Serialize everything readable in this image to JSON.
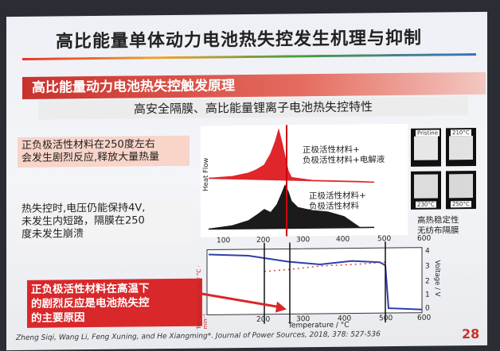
{
  "slide": {
    "title": "高比能量单体动力电池热失控发生机理与抑制",
    "banner": "高比能量动力电池热失控触发原理",
    "subtitle": "高安全隔膜、高比能量锂离子电池热失控特性",
    "notes": [
      {
        "lines": [
          "正负极活性材料在250度左右",
          "会发生剧烈反应,释放大量热量"
        ]
      },
      {
        "lines": [
          "热失控时,电压仍能保持4V,",
          "未发生内短路，隔膜在250",
          "度未发生崩溃"
        ]
      },
      {
        "lines": [
          "正负极活性材料在高温下",
          "的剧烈反应是电池热失控",
          "的主要原因"
        ]
      }
    ],
    "footer": "Zheng Siqi, Wang Li, Feng Xuning, and He Xiangming*. Journal of Power Sources, 2018, 378: 527-536",
    "page_number": "28"
  },
  "top_plot": {
    "ylabel": "Heat Flow",
    "legend_red": [
      "正极活性材料+",
      "负极活性材料+电解液"
    ],
    "legend_black": [
      "正极活性材料+",
      "负极活性材料"
    ],
    "colors": {
      "red": "#e0262a",
      "black": "#1b1b1b"
    }
  },
  "separator": {
    "labels": [
      "Pristine",
      "210°C",
      "230°C",
      "250°C"
    ],
    "caption": [
      "高热稳定性",
      "无纺布隔膜"
    ]
  },
  "bottom_plot": {
    "x_ticks": [
      "100",
      "200",
      "300",
      "400",
      "500",
      "600"
    ],
    "bottom_ticks": [
      "200",
      "300",
      "400",
      "500",
      "600"
    ],
    "ylabel_left": "Temperature rate / °C · min⁻¹",
    "ylabel_right": "Voltage / V",
    "right_ticks": [
      "4",
      "3",
      "2",
      "1",
      "0"
    ],
    "xlabel": "Temperature / °C",
    "colors": {
      "voltage": "#2f3ea8",
      "temp": "#d63a3a"
    }
  }
}
